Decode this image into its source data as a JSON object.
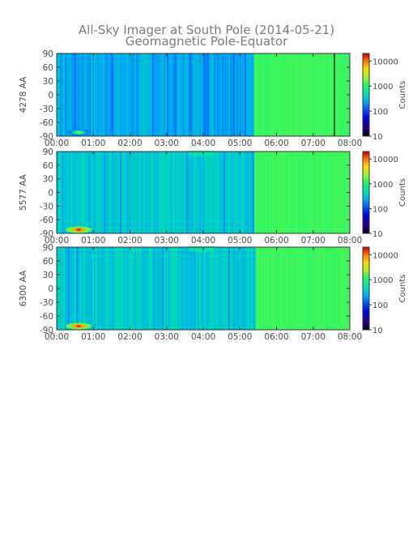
{
  "title_line1": "All-Sky Imager at South Pole (2014-05-21)",
  "title_line2": "Geomagnetic Pole-Equator",
  "chart_data": [
    {
      "type": "heatmap",
      "panel": "4278 AA",
      "ylabel": "4278 AA",
      "x_ticks": [
        "00:00",
        "01:00",
        "02:00",
        "03:00",
        "04:00",
        "05:00",
        "06:00",
        "07:00",
        "08:00"
      ],
      "xlim_hours": [
        0,
        8
      ],
      "y_ticks": [
        90,
        60,
        30,
        0,
        -30,
        -60,
        -90
      ],
      "ylim": [
        -90,
        90
      ],
      "colorbar": {
        "label": "Counts",
        "ticks": [
          "10000",
          "1000",
          "100",
          "10"
        ],
        "scale": "log",
        "range": [
          10,
          20000
        ]
      },
      "features": {
        "background_counts": 250,
        "transition_time_hours": 5.35,
        "after_transition_counts": 1300,
        "bright_spot": {
          "time_hours": 0.6,
          "lat": -82,
          "counts": 1500
        },
        "black_line_time_hours": 7.58
      }
    },
    {
      "type": "heatmap",
      "panel": "5577 AA",
      "ylabel": "5577 AA",
      "x_ticks": [
        "00:00",
        "01:00",
        "02:00",
        "03:00",
        "04:00",
        "05:00",
        "06:00",
        "07:00",
        "08:00"
      ],
      "xlim_hours": [
        0,
        8
      ],
      "y_ticks": [
        90,
        60,
        30,
        0,
        -30,
        -60,
        -90
      ],
      "ylim": [
        -90,
        90
      ],
      "colorbar": {
        "label": "Counts",
        "ticks": [
          "10000",
          "1000",
          "100",
          "10"
        ],
        "scale": "log",
        "range": [
          10,
          20000
        ]
      },
      "features": {
        "background_counts": 350,
        "transition_time_hours": 5.35,
        "after_transition_counts": 1300,
        "bright_spot": {
          "time_hours": 0.6,
          "lat": -82,
          "counts": 15000
        }
      }
    },
    {
      "type": "heatmap",
      "panel": "6300 AA",
      "ylabel": "6300 AA",
      "x_ticks": [
        "00:00",
        "01:00",
        "02:00",
        "03:00",
        "04:00",
        "05:00",
        "06:00",
        "07:00",
        "08:00"
      ],
      "xlim_hours": [
        0,
        8
      ],
      "y_ticks": [
        90,
        60,
        30,
        0,
        -30,
        -60,
        -90
      ],
      "ylim": [
        -90,
        90
      ],
      "colorbar": {
        "label": "Counts",
        "ticks": [
          "10000",
          "1000",
          "100",
          "10"
        ],
        "scale": "log",
        "range": [
          10,
          20000
        ]
      },
      "features": {
        "background_counts": 350,
        "transition_time_hours": 5.4,
        "after_transition_counts": 1300,
        "bright_spot": {
          "time_hours": 0.6,
          "lat": -82,
          "counts": 15000
        }
      }
    }
  ]
}
